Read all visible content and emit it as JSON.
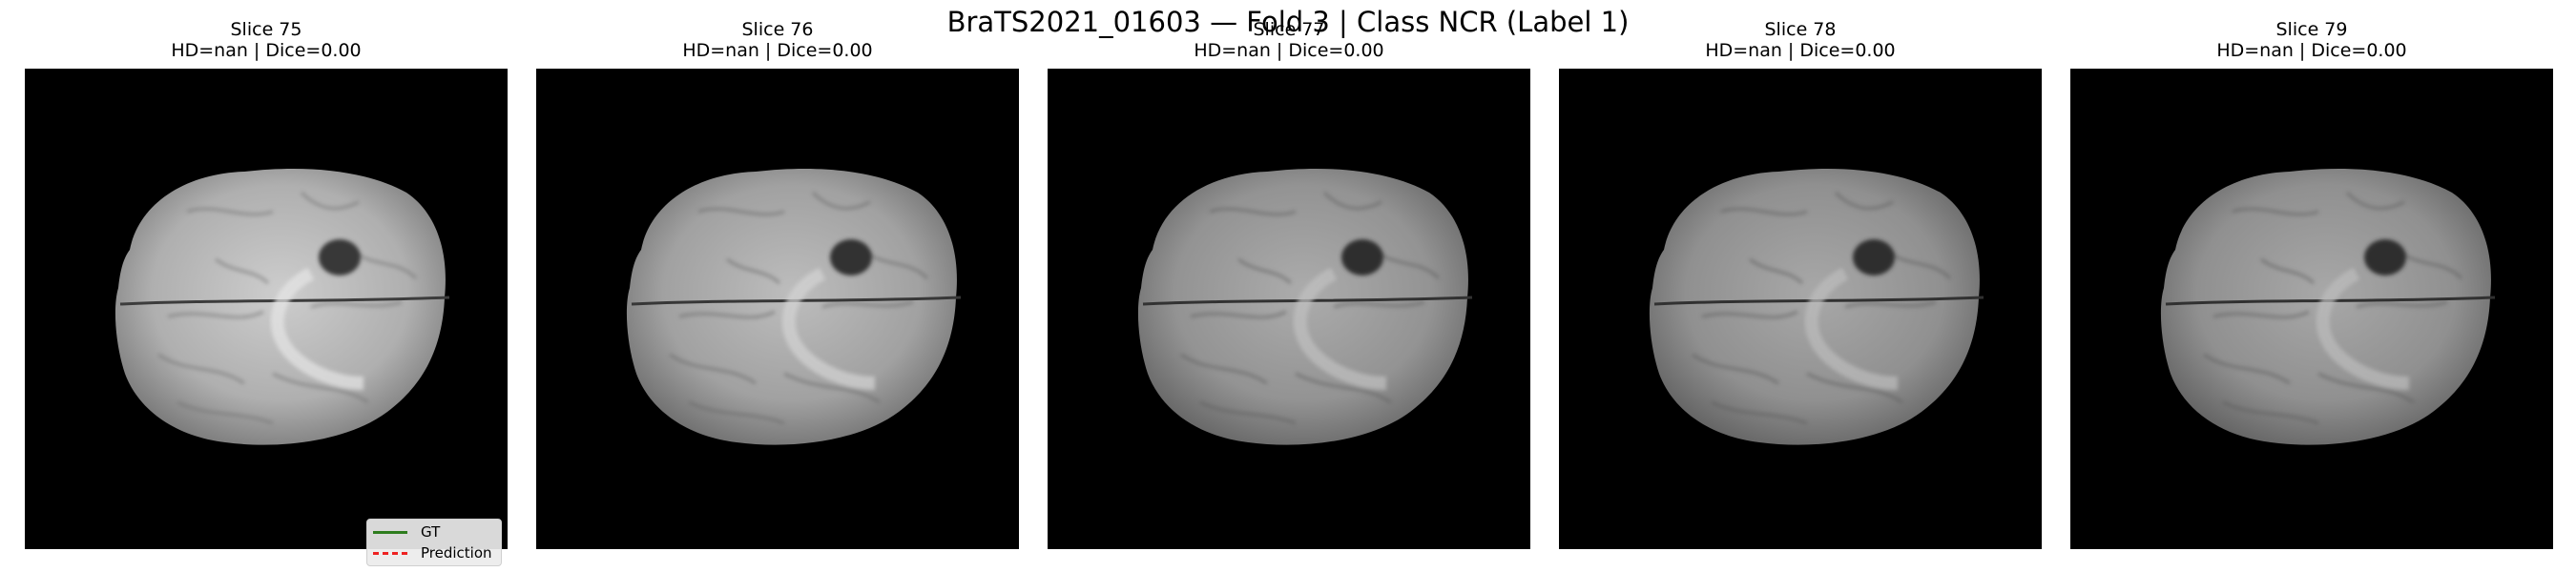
{
  "figure": {
    "suptitle": "BraTS2021_01603 — Fold 3 | Class NCR (Label 1)"
  },
  "panels": [
    {
      "slice": "Slice 75",
      "metrics": "HD=nan | Dice=0.00",
      "brightness": 1.0
    },
    {
      "slice": "Slice 76",
      "metrics": "HD=nan | Dice=0.00",
      "brightness": 0.92
    },
    {
      "slice": "Slice 77",
      "metrics": "HD=nan | Dice=0.00",
      "brightness": 0.84
    },
    {
      "slice": "Slice 78",
      "metrics": "HD=nan | Dice=0.00",
      "brightness": 0.82
    },
    {
      "slice": "Slice 79",
      "metrics": "HD=nan | Dice=0.00",
      "brightness": 0.82
    }
  ],
  "legend": {
    "gt": "GT",
    "pred": "Prediction"
  },
  "colors": {
    "gt": "#2e7d1e",
    "prediction": "#ee2222"
  }
}
